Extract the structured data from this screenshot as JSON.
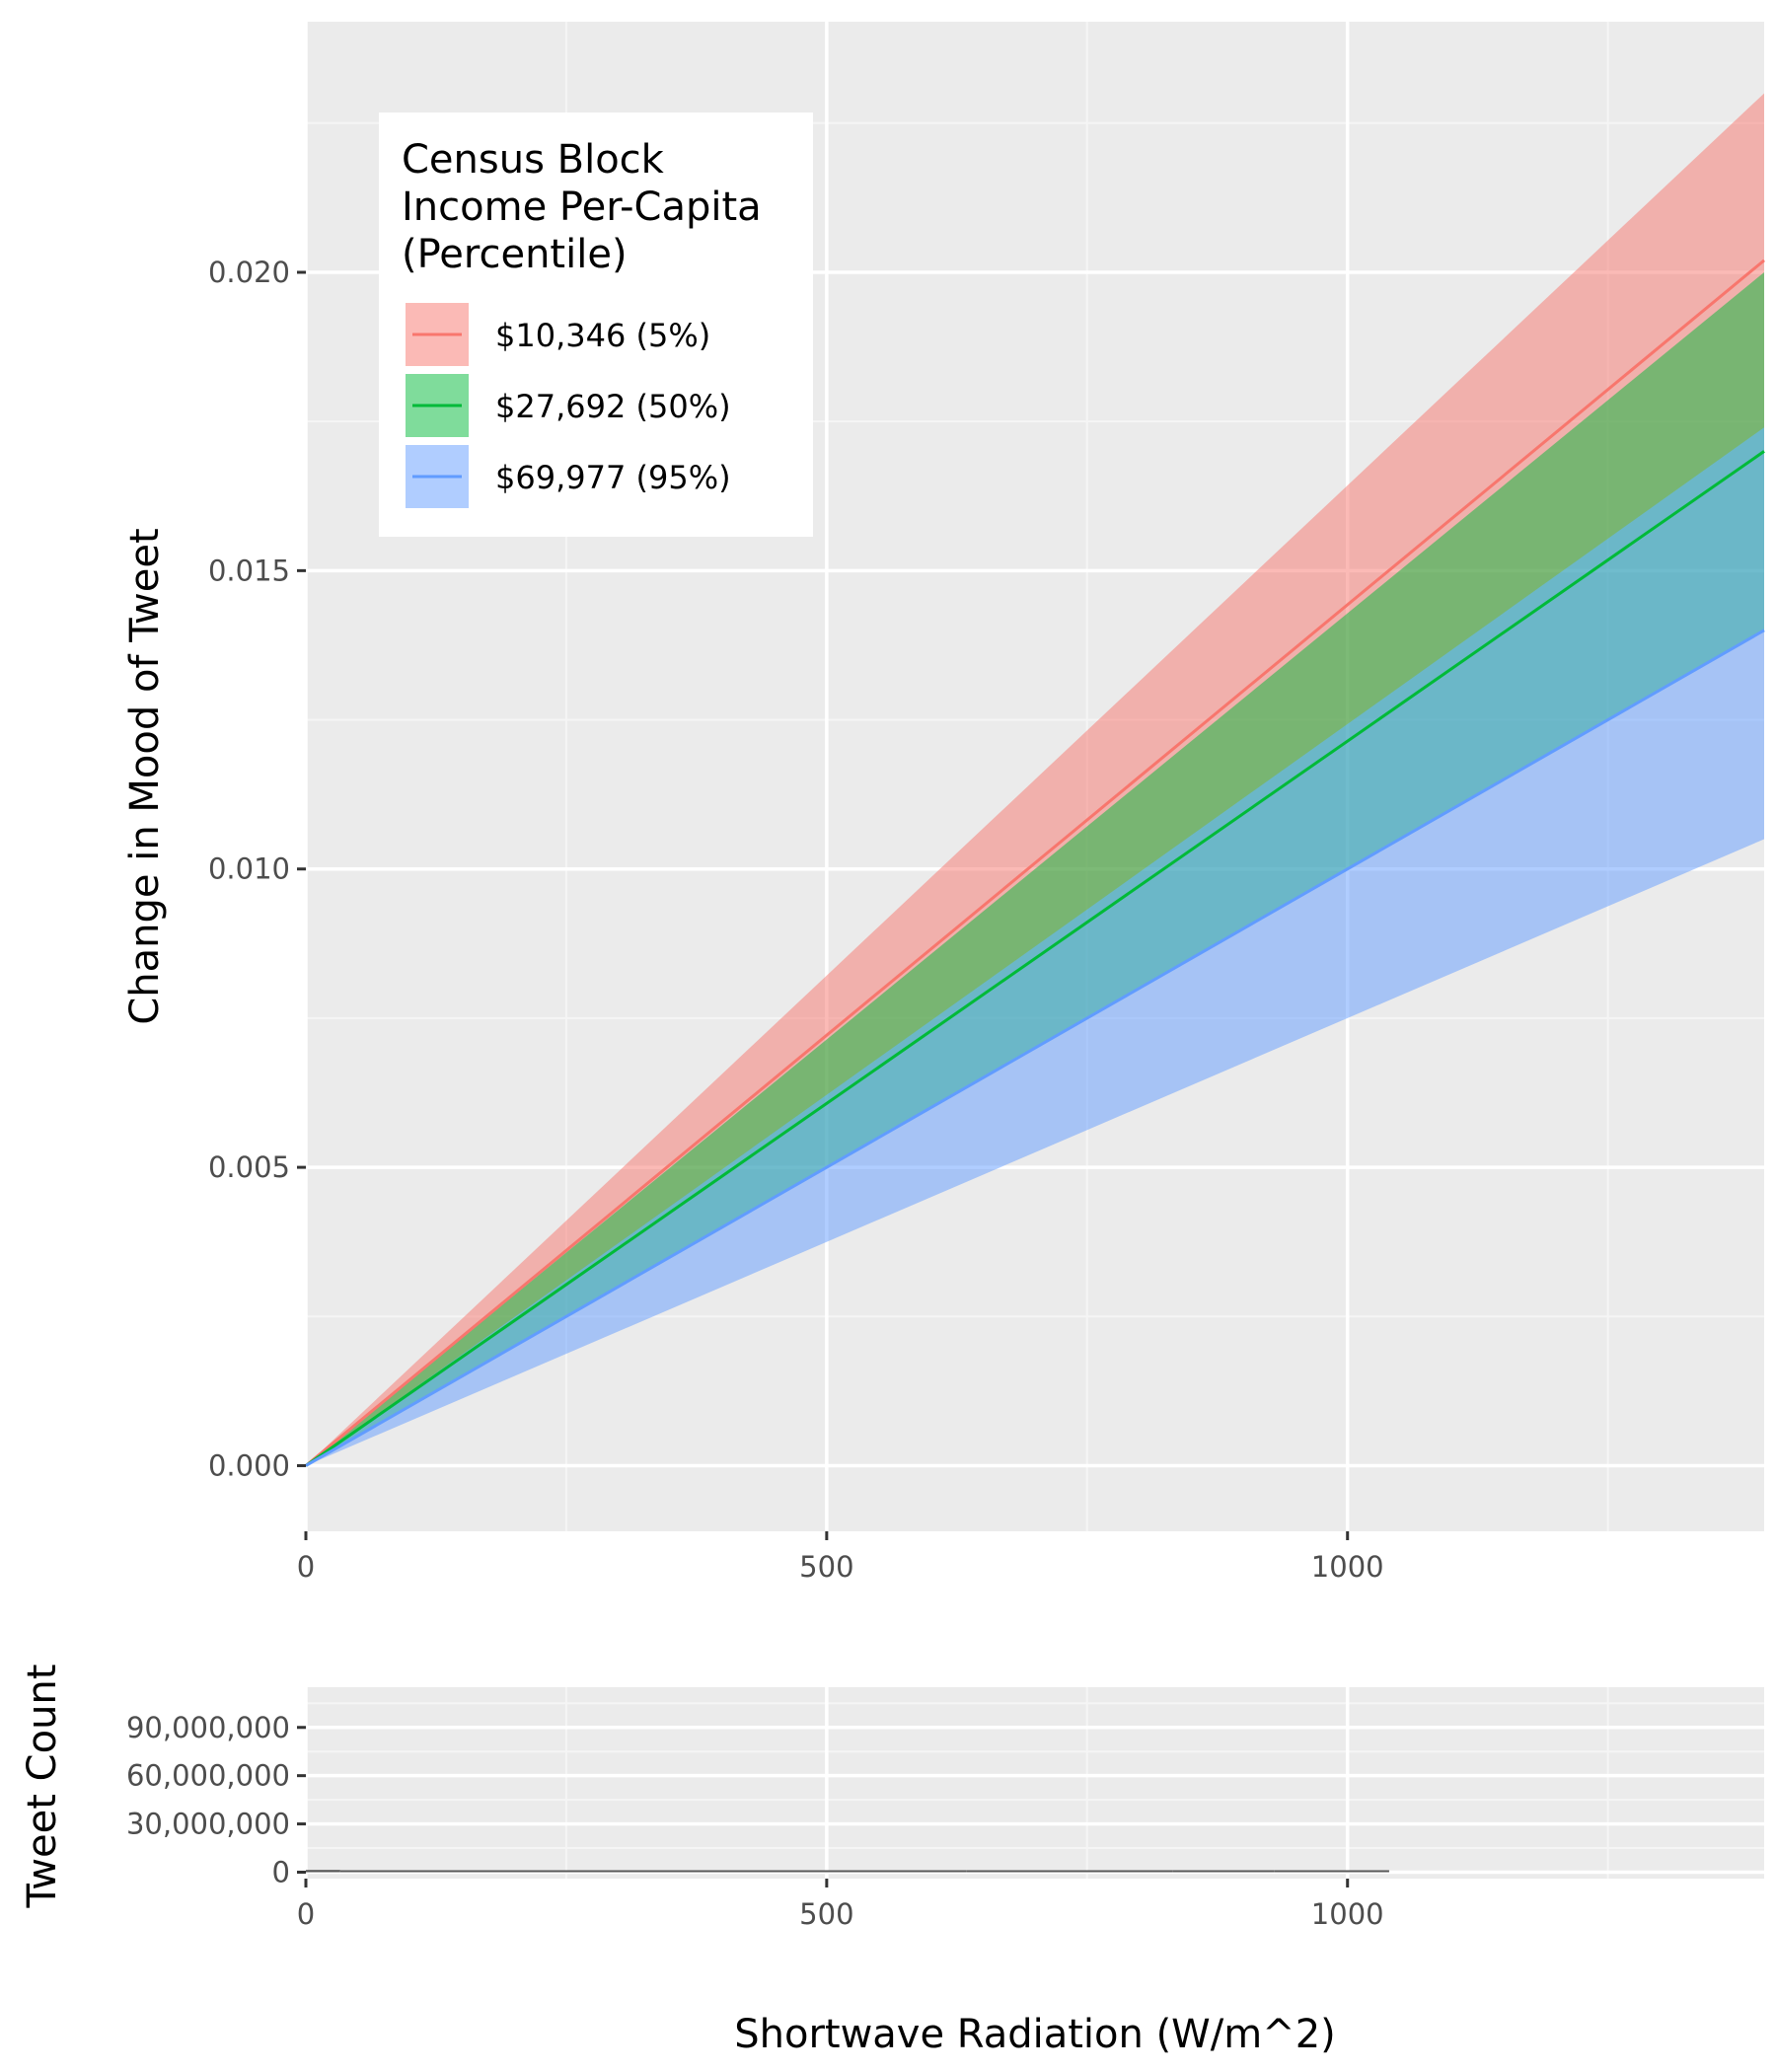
{
  "chart_data": [
    {
      "type": "line",
      "xlabel": "",
      "ylabel": "Change in Mood of Tweet",
      "xlim": [
        0,
        1400
      ],
      "ylim": [
        -0.0011,
        0.0242
      ],
      "x_ticks": [
        0,
        500,
        1000
      ],
      "x_tick_labels": [
        "0",
        "500",
        "1000"
      ],
      "y_ticks": [
        0.0,
        0.005,
        0.01,
        0.015,
        0.02
      ],
      "y_tick_labels": [
        "0.000",
        "0.005",
        "0.010",
        "0.015",
        "0.020"
      ],
      "grid": true,
      "legend": {
        "title_lines": [
          "Census Block",
          "Income Per-Capita",
          "(Percentile)"
        ],
        "position": "top-left"
      },
      "series": [
        {
          "name": "$10,346 (5%)",
          "color": "#F8766D",
          "x": [
            0,
            1400
          ],
          "y": [
            0,
            0.0202
          ],
          "lower": [
            0,
            0.0174
          ],
          "upper": [
            0,
            0.023
          ]
        },
        {
          "name": "$27,692 (50%)",
          "color": "#00BA38",
          "x": [
            0,
            1400
          ],
          "y": [
            0,
            0.017
          ],
          "lower": [
            0,
            0.014
          ],
          "upper": [
            0,
            0.02
          ]
        },
        {
          "name": "$69,977 (95%)",
          "color": "#619CFF",
          "x": [
            0,
            1400
          ],
          "y": [
            0,
            0.014
          ],
          "lower": [
            0,
            0.0105
          ],
          "upper": [
            0,
            0.0174
          ]
        }
      ]
    },
    {
      "type": "bar",
      "xlabel": "Shortwave Radiation (W/m^2)",
      "ylabel": "Tweet Count",
      "xlim": [
        0,
        1400
      ],
      "ylim": [
        -4000000,
        115000000
      ],
      "x_ticks": [
        0,
        500,
        1000
      ],
      "x_tick_labels": [
        "0",
        "500",
        "1000"
      ],
      "y_ticks": [
        0,
        30000000,
        60000000,
        90000000
      ],
      "y_tick_labels": [
        "0",
        "30,000,000",
        "60,000,000",
        "90,000,000"
      ],
      "grid": true,
      "bar_color": "#595959",
      "bins": [
        {
          "x0": 0,
          "x1": 33,
          "value": 1400000
        },
        {
          "x0": 33,
          "x1": 634,
          "value": 900000
        },
        {
          "x0": 634,
          "x1": 832,
          "value": 500000
        },
        {
          "x0": 832,
          "x1": 930,
          "value": 300000
        },
        {
          "x0": 930,
          "x1": 1040,
          "value": 150000
        }
      ]
    }
  ]
}
